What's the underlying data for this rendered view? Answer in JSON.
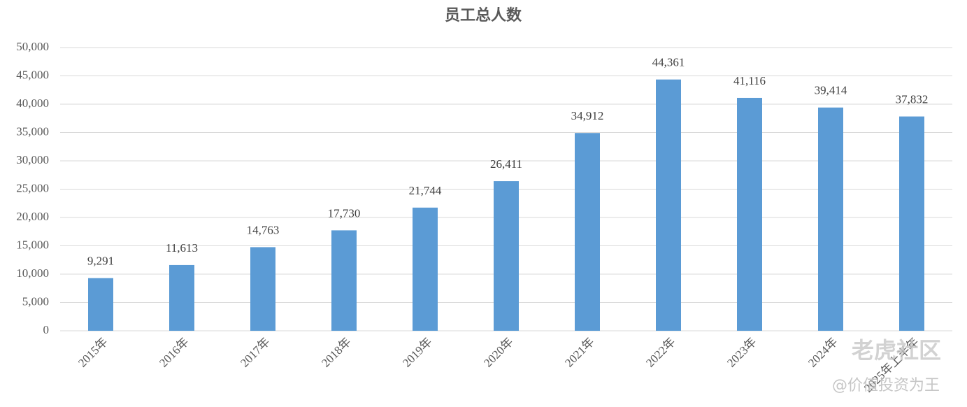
{
  "chart_data": {
    "type": "bar",
    "title": "员工总人数",
    "categories": [
      "2015年",
      "2016年",
      "2017年",
      "2018年",
      "2019年",
      "2020年",
      "2021年",
      "2022年",
      "2023年",
      "2024年",
      "2025年上半年"
    ],
    "values": [
      9291,
      11613,
      14763,
      17730,
      21744,
      26411,
      34912,
      44361,
      41116,
      39414,
      37832
    ],
    "value_labels": [
      "9,291",
      "11,613",
      "14,763",
      "17,730",
      "21,744",
      "26,411",
      "34,912",
      "44,361",
      "41,116",
      "39,414",
      "37,832"
    ],
    "color": "#5b9bd5",
    "ylim": [
      0,
      50000
    ],
    "yticks": [
      0,
      {
        "value": 5000,
        "label": "5,000"
      },
      {
        "value": 10000,
        "label": "10,000"
      },
      {
        "value": 15000,
        "label": "15,000"
      },
      {
        "value": 20000,
        "label": "20,000"
      },
      {
        "value": 25000,
        "label": "25,000"
      },
      {
        "value": 30000,
        "label": "30,000"
      },
      {
        "value": 35000,
        "label": "35,000"
      },
      {
        "value": 40000,
        "label": "40,000"
      },
      {
        "value": 45000,
        "label": "45,000"
      },
      {
        "value": 50000,
        "label": "50,000"
      }
    ],
    "grid": true,
    "watermark": [
      "老虎社区",
      "@价值投资为王"
    ]
  }
}
